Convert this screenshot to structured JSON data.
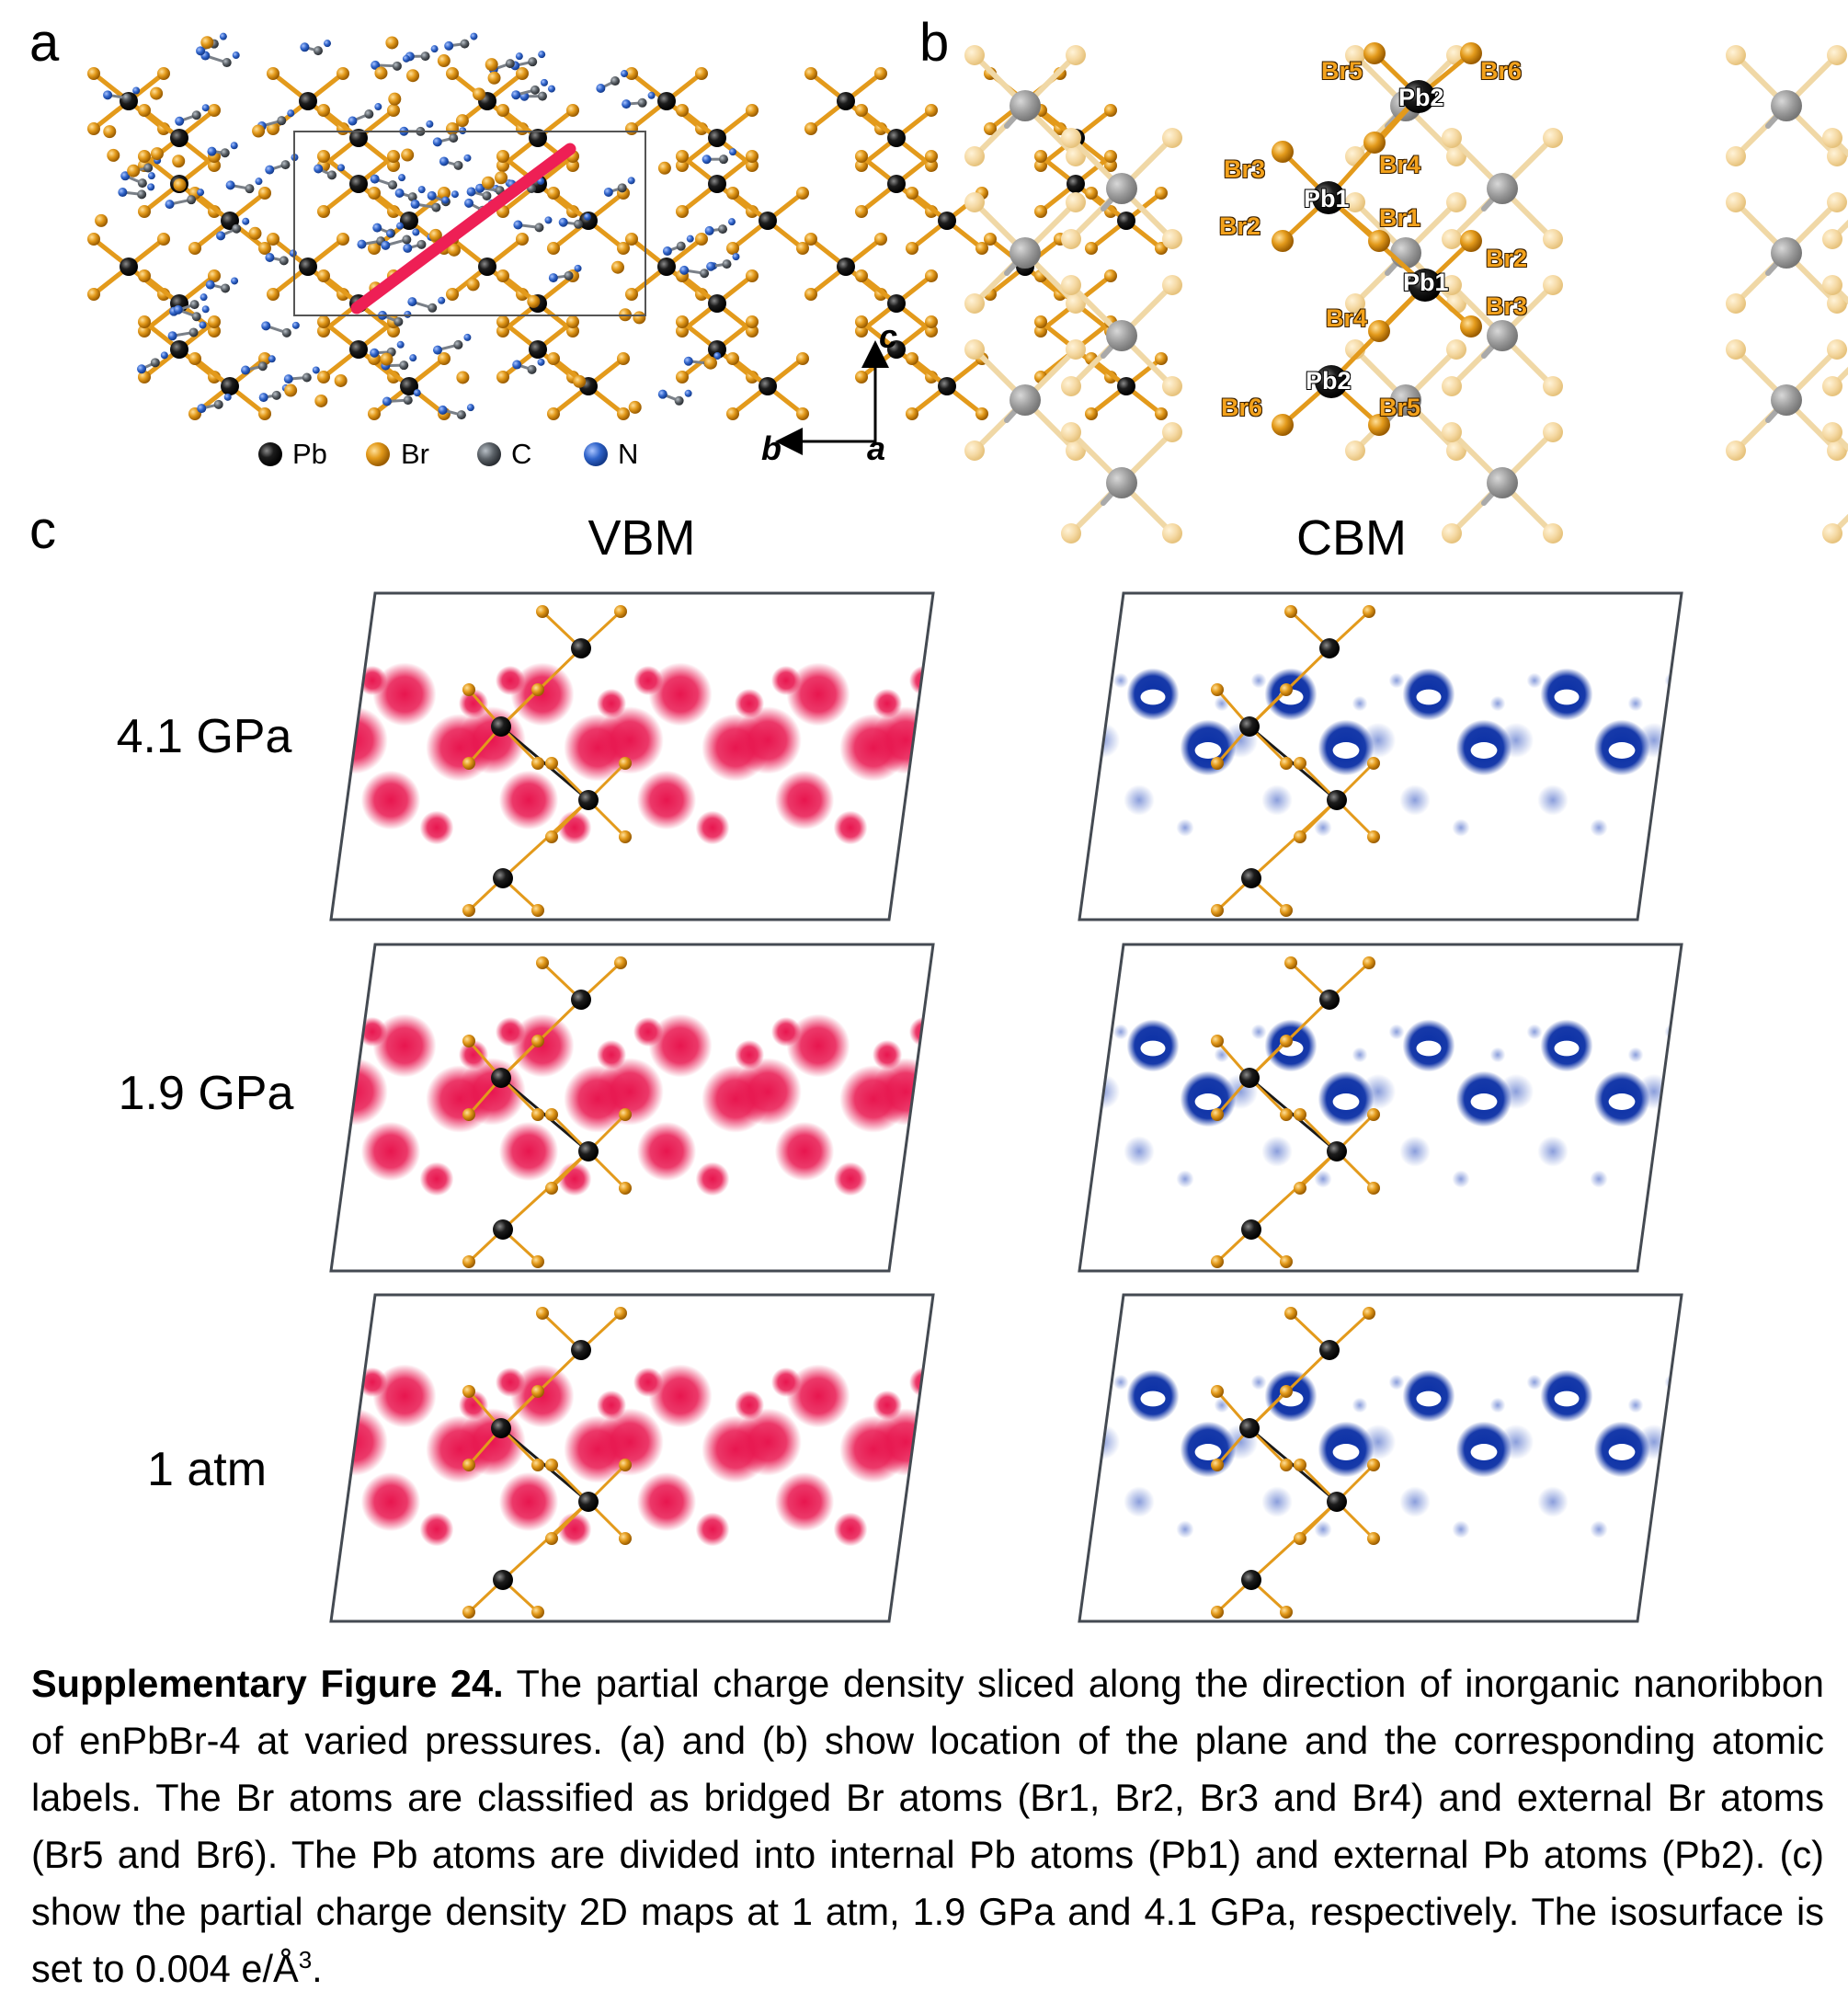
{
  "panels": {
    "a": "a",
    "b": "b",
    "c": "c"
  },
  "legend": [
    {
      "symbol": "Pb",
      "color": "#141414"
    },
    {
      "symbol": "Br",
      "color": "#e39a1b"
    },
    {
      "symbol": "C",
      "color": "#5a6066"
    },
    {
      "symbol": "N",
      "color": "#2f63c9"
    }
  ],
  "axes": {
    "c": "c",
    "b": "b",
    "a": "a"
  },
  "atom_labels": {
    "br5_top": "Br5",
    "br6_top": "Br6",
    "pb2_top": "Pb2",
    "br3_top": "Br3",
    "br4_top": "Br4",
    "pb1_top": "Pb1",
    "br2_top": "Br2",
    "br1": "Br1",
    "br2_mid": "Br2",
    "pb1_mid": "Pb1",
    "br3_mid": "Br3",
    "br4_mid": "Br4",
    "pb2_bot": "Pb2",
    "br6_bot": "Br6",
    "br5_bot": "Br5"
  },
  "columns": {
    "vbm": "VBM",
    "cbm": "CBM"
  },
  "rows": [
    "4.1 GPa",
    "1.9 GPa",
    "1 atm"
  ],
  "colors": {
    "vbm": "#e8164f",
    "cbm": "#0a2fa5",
    "pb": "#141414",
    "br": "#e39a1b",
    "highlight": "#ee1f55"
  },
  "caption": {
    "bold": "Supplementary Figure 24.",
    "text_before_sup": " The partial charge density sliced along the direction of inorganic nanoribbon of enPbBr-4 at varied pressures. (a) and (b) show location of the plane and the corresponding atomic labels. The Br atoms are classified as bridged Br atoms (Br1, Br2, Br3 and Br4) and external Br atoms (Br5 and Br6). The Pb atoms are divided into internal Pb atoms (Pb1) and external Pb atoms (Pb2). (c) show the partial charge density 2D maps at 1 atm, 1.9 GPa and 4.1 GPa, respectively. The isosurface is set to 0.004 e/Å",
    "sup": "3",
    "text_after_sup": "."
  }
}
